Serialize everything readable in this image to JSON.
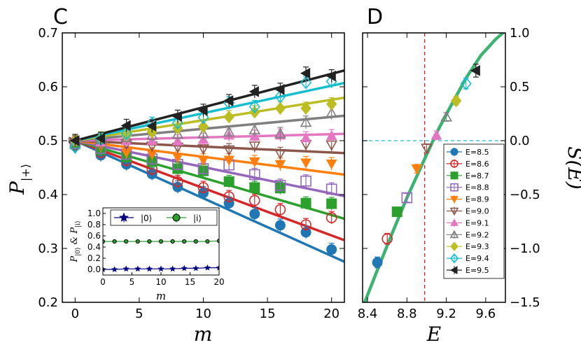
{
  "chart_data": [
    {
      "panel": "C",
      "type": "line+scatter",
      "panel_label": "C",
      "xlabel": "m",
      "ylabel": "P|+⟩",
      "xlim": [
        -1,
        21
      ],
      "ylim": [
        0.2,
        0.7
      ],
      "xticks": [
        "0",
        "5",
        "10",
        "15",
        "20"
      ],
      "yticks": [
        "0.2",
        "0.3",
        "0.4",
        "0.5",
        "0.6",
        "0.7"
      ],
      "x": [
        0,
        2,
        4,
        6,
        8,
        10,
        12,
        14,
        16,
        18,
        20
      ],
      "series": [
        {
          "name": "E=8.5",
          "color": "#1f77b4",
          "marker": "circle",
          "slope": -0.0107,
          "values": [
            0.49,
            0.473,
            0.456,
            0.438,
            0.414,
            0.403,
            0.384,
            0.364,
            0.343,
            0.33,
            0.298
          ]
        },
        {
          "name": "E=8.6",
          "color": "#d62728",
          "marker": "circle-open",
          "slope": -0.0088,
          "values": [
            0.492,
            0.478,
            0.463,
            0.447,
            0.424,
            0.413,
            0.396,
            0.389,
            0.372,
            0.344,
            0.357
          ]
        },
        {
          "name": "E=8.7",
          "color": "#2ca02c",
          "marker": "square",
          "slope": -0.0069,
          "values": [
            0.494,
            0.483,
            0.47,
            0.461,
            0.448,
            0.444,
            0.424,
            0.413,
            0.412,
            0.384,
            0.383
          ]
        },
        {
          "name": "E=8.8",
          "color": "#9467bd",
          "marker": "square-open",
          "slope": -0.0049,
          "values": [
            0.495,
            0.486,
            0.475,
            0.466,
            0.456,
            0.448,
            0.455,
            0.437,
            0.417,
            0.425,
            0.41
          ]
        },
        {
          "name": "E=8.9",
          "color": "#ff7f0e",
          "marker": "triangle-down",
          "slope": -0.003,
          "values": [
            0.496,
            0.49,
            0.478,
            0.475,
            0.469,
            0.464,
            0.464,
            0.461,
            0.456,
            0.459,
            0.457
          ]
        },
        {
          "name": "E=9.0",
          "color": "#8c564b",
          "marker": "triangle-down-open",
          "slope": -0.0011,
          "values": [
            0.497,
            0.494,
            0.494,
            0.49,
            0.488,
            0.485,
            0.483,
            0.49,
            0.476,
            0.493,
            0.492
          ]
        },
        {
          "name": "E=9.1",
          "color": "#e377c2",
          "marker": "triangle-up",
          "slope": 0.0006,
          "values": [
            0.498,
            0.497,
            0.5,
            0.5,
            0.499,
            0.502,
            0.51,
            0.508,
            0.51,
            0.505,
            0.509
          ]
        },
        {
          "name": "E=9.2",
          "color": "#7f7f7f",
          "marker": "triangle-up-open",
          "slope": 0.0022,
          "values": [
            0.498,
            0.502,
            0.506,
            0.51,
            0.512,
            0.513,
            0.516,
            0.52,
            0.513,
            0.534,
            0.551
          ]
        },
        {
          "name": "E=9.3",
          "color": "#bcbd22",
          "marker": "diamond",
          "slope": 0.0038,
          "values": [
            0.499,
            0.505,
            0.51,
            0.516,
            0.523,
            0.526,
            0.544,
            0.553,
            0.56,
            0.56,
            0.568
          ]
        },
        {
          "name": "E=9.4",
          "color": "#17becf",
          "marker": "diamond-open",
          "slope": 0.0051,
          "values": [
            0.488,
            0.503,
            0.513,
            0.532,
            0.533,
            0.543,
            0.57,
            0.563,
            0.582,
            0.608,
            0.61
          ]
        },
        {
          "name": "E=9.5",
          "color": "#222222",
          "marker": "triangle-left",
          "slope": 0.0062,
          "values": [
            0.5,
            0.504,
            0.528,
            0.527,
            0.545,
            0.556,
            0.574,
            0.591,
            0.595,
            0.625,
            0.62
          ]
        }
      ],
      "inset": {
        "ylabel": "P|0⟩ & P|i⟩",
        "xlabel": "m",
        "xlim": [
          0,
          20
        ],
        "ylim": [
          -0.1,
          1.1
        ],
        "xticks": [
          "0",
          "5",
          "10",
          "15",
          "20"
        ],
        "yticks": [
          "0.0",
          "0.2",
          "0.4",
          "0.6",
          "0.8",
          "1.0"
        ],
        "x": [
          0,
          2,
          4,
          6,
          8,
          10,
          12,
          14,
          16,
          18,
          20
        ],
        "legend": [
          "|0⟩",
          "|i⟩"
        ],
        "series": [
          {
            "name": "|0⟩",
            "color": "#000080",
            "marker": "star",
            "values": [
              0.0,
              0.0,
              0.01,
              0.01,
              0.01,
              0.01,
              0.01,
              0.02,
              0.02,
              0.03,
              0.03
            ]
          },
          {
            "name": "|i⟩",
            "color": "#2ca02c",
            "marker": "circle",
            "values": [
              0.5,
              0.5,
              0.5,
              0.5,
              0.5,
              0.5,
              0.5,
              0.5,
              0.5,
              0.5,
              0.51
            ]
          }
        ]
      }
    },
    {
      "panel": "D",
      "type": "line+scatter",
      "panel_label": "D",
      "xlabel": "E",
      "ylabel": "S(E)",
      "xlim": [
        8.35,
        9.8
      ],
      "ylim": [
        -1.5,
        1.0
      ],
      "xticks": [
        "8.4",
        "8.8",
        "9.2",
        "9.6"
      ],
      "yticks": [
        "−1.5",
        "−1.0",
        "−0.5",
        "0.0",
        "0.5",
        "1.0"
      ],
      "vline": 8.98,
      "hline": 0.0,
      "curve": {
        "color": "#3cb371",
        "E": [
          8.35,
          8.5,
          8.65,
          8.8,
          8.95,
          9.1,
          9.25,
          9.4,
          9.55,
          9.7,
          9.8
        ],
        "S": [
          -1.55,
          -1.2,
          -0.86,
          -0.53,
          -0.23,
          0.07,
          0.33,
          0.58,
          0.79,
          0.94,
          1.02
        ]
      },
      "points": [
        {
          "label": "E=8.5",
          "E": 8.5,
          "S": -1.13,
          "err": 0.05
        },
        {
          "label": "E=8.6",
          "E": 8.6,
          "S": -0.91,
          "err": 0.05
        },
        {
          "label": "E=8.7",
          "E": 8.7,
          "S": -0.66,
          "err": 0.04
        },
        {
          "label": "E=8.8",
          "E": 8.8,
          "S": -0.53,
          "err": 0.04
        },
        {
          "label": "E=8.9",
          "E": 8.9,
          "S": -0.26,
          "err": 0.04
        },
        {
          "label": "E=9.0",
          "E": 9.0,
          "S": -0.07,
          "err": 0.04
        },
        {
          "label": "E=9.1",
          "E": 9.1,
          "S": 0.05,
          "err": 0.04
        },
        {
          "label": "E=9.2",
          "E": 9.2,
          "S": 0.22,
          "err": 0.04
        },
        {
          "label": "E=9.3",
          "E": 9.3,
          "S": 0.37,
          "err": 0.04
        },
        {
          "label": "E=9.4",
          "E": 9.4,
          "S": 0.53,
          "err": 0.05
        },
        {
          "label": "E=9.5",
          "E": 9.5,
          "S": 0.65,
          "err": 0.06
        }
      ]
    }
  ]
}
